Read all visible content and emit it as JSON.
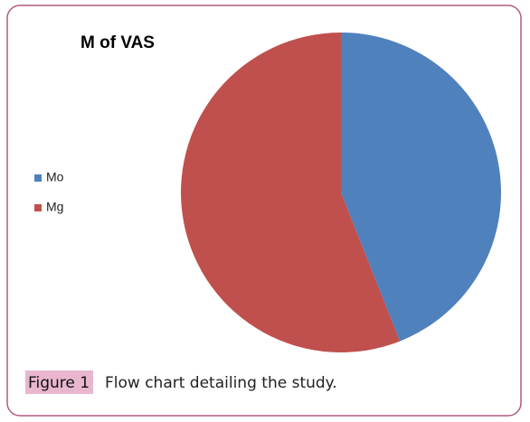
{
  "chart_data": {
    "type": "pie",
    "title": "M of VAS",
    "categories": [
      "Mo",
      "Mg"
    ],
    "values": [
      44,
      56
    ],
    "colors": [
      "#4f81bd",
      "#c0504d"
    ],
    "legend": "left"
  },
  "figure": {
    "label": "Figure 1",
    "caption": "Flow chart detailing the study."
  }
}
